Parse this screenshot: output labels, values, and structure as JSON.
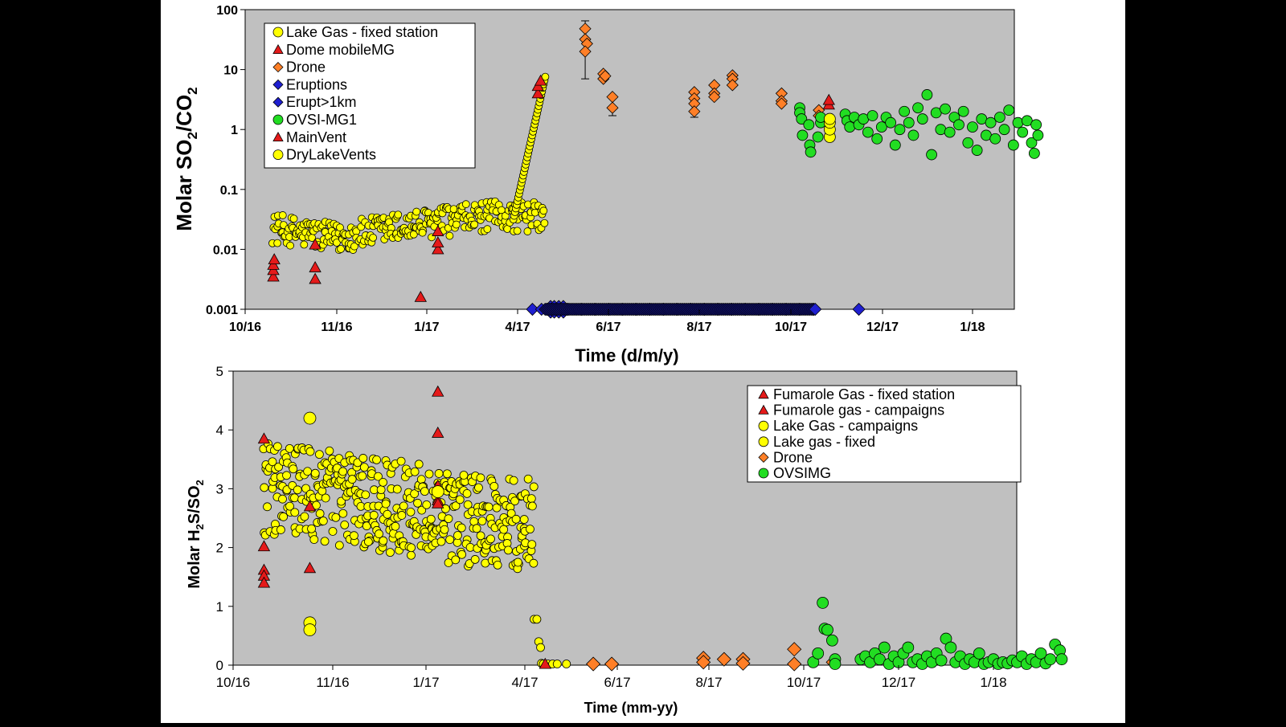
{
  "chart_data": [
    {
      "type": "scatter",
      "xlabel": "Time (d/m/y)",
      "ylabel_parts": [
        "Molar SO",
        "2",
        "/CO",
        "2"
      ],
      "yscale": "log",
      "ylim": [
        0.001,
        100
      ],
      "y_ticks": [
        "0.001",
        "0.01",
        "0.1",
        "1",
        "10",
        "100"
      ],
      "x_ticks": [
        "10/16",
        "11/16",
        "1/17",
        "4/17",
        "6/17",
        "8/17",
        "10/17",
        "12/17",
        "1/18"
      ],
      "legend_position": "top-left",
      "legend": [
        {
          "label": "Lake Gas - fixed station",
          "marker": "circle",
          "color": "#ffff00"
        },
        {
          "label": "Dome mobileMG",
          "marker": "triangle",
          "color": "#e41a1a"
        },
        {
          "label": "Drone",
          "marker": "diamond",
          "color": "#ff7f27"
        },
        {
          "label": "Eruptions",
          "marker": "diamond",
          "color": "#1f1fd0"
        },
        {
          "label": "Erupt>1km",
          "marker": "diamond",
          "color": "#1f1fd0"
        },
        {
          "label": "OVSI-MG1",
          "marker": "circle",
          "color": "#22dd22"
        },
        {
          "label": "MainVent",
          "marker": "triangle",
          "color": "#e41a1a"
        },
        {
          "label": "DryLakeVents",
          "marker": "circle",
          "color": "#ffff00"
        }
      ],
      "series": [
        {
          "name": "Dome mobileMG",
          "marker": "triangle",
          "color": "#e41a1a",
          "points": [
            [
              0.31,
              0.0035
            ],
            [
              0.31,
              0.0045
            ],
            [
              0.31,
              0.0055
            ],
            [
              0.32,
              0.0068
            ],
            [
              0.77,
              0.012
            ],
            [
              0.77,
              0.005
            ],
            [
              0.77,
              0.0032
            ],
            [
              1.93,
              0.0016
            ],
            [
              2.12,
              0.01
            ],
            [
              2.12,
              0.013
            ],
            [
              2.12,
              0.02
            ]
          ]
        },
        {
          "name": "MainVent",
          "marker": "triangle",
          "color": "#e41a1a",
          "points": [
            [
              3.22,
              4.0
            ],
            [
              3.22,
              5.3
            ],
            [
              3.25,
              6.5
            ],
            [
              6.42,
              2.6
            ],
            [
              6.42,
              3.1
            ]
          ]
        },
        {
          "name": "Drone",
          "marker": "diamond",
          "color": "#ff7f27",
          "points": [
            [
              3.74,
              48
            ],
            [
              3.74,
              32
            ],
            [
              3.76,
              27
            ],
            [
              3.74,
              20
            ],
            [
              3.94,
              8.5
            ],
            [
              3.94,
              7.0
            ],
            [
              3.96,
              7.8
            ],
            [
              4.04,
              3.5
            ],
            [
              4.04,
              2.3
            ],
            [
              4.94,
              4.2
            ],
            [
              4.94,
              3.3
            ],
            [
              4.94,
              2.7
            ],
            [
              4.94,
              2.0
            ],
            [
              5.16,
              5.5
            ],
            [
              5.16,
              4.0
            ],
            [
              5.16,
              3.5
            ],
            [
              5.36,
              8.0
            ],
            [
              5.36,
              7.0
            ],
            [
              5.36,
              5.5
            ],
            [
              5.9,
              4.0
            ],
            [
              5.9,
              3.0
            ],
            [
              5.9,
              2.7
            ],
            [
              6.31,
              2.1
            ],
            [
              6.31,
              1.7
            ]
          ]
        },
        {
          "name": "Eruptions",
          "marker": "diamond",
          "color": "#1f1fd0",
          "points": [
            [
              3.16,
              0.001
            ],
            [
              3.26,
              0.001
            ],
            [
              3.32,
              0.001
            ],
            [
              3.42,
              0.001
            ],
            [
              3.55,
              0.001
            ],
            [
              3.7,
              0.001
            ],
            [
              3.85,
              0.001
            ],
            [
              4.0,
              0.001
            ],
            [
              4.15,
              0.001
            ],
            [
              4.3,
              0.001
            ],
            [
              4.45,
              0.001
            ],
            [
              4.6,
              0.001
            ],
            [
              4.75,
              0.001
            ],
            [
              4.9,
              0.001
            ],
            [
              5.05,
              0.001
            ],
            [
              5.2,
              0.001
            ],
            [
              5.35,
              0.001
            ],
            [
              5.5,
              0.001
            ],
            [
              5.65,
              0.001
            ],
            [
              5.8,
              0.001
            ],
            [
              5.95,
              0.001
            ],
            [
              6.1,
              0.001
            ],
            [
              6.25,
              0.001
            ],
            [
              6.75,
              0.001
            ]
          ]
        },
        {
          "name": "Erupt>1km",
          "marker": "diamond",
          "color": "#1f1fd0",
          "points": [
            [
              3.36,
              0.001
            ],
            [
              3.4,
              0.001
            ],
            [
              3.45,
              0.001
            ],
            [
              3.5,
              0.001
            ]
          ]
        },
        {
          "name": "OVSI-MG1",
          "marker": "circle",
          "color": "#22dd22",
          "points": [
            [
              6.1,
              2.3
            ],
            [
              6.1,
              1.9
            ],
            [
              6.12,
              1.5
            ],
            [
              6.13,
              0.8
            ],
            [
              6.2,
              1.2
            ],
            [
              6.21,
              0.55
            ],
            [
              6.22,
              0.42
            ],
            [
              6.3,
              0.75
            ],
            [
              6.33,
              1.3
            ],
            [
              6.33,
              1.6
            ],
            [
              6.6,
              1.8
            ],
            [
              6.62,
              1.4
            ],
            [
              6.65,
              1.1
            ],
            [
              6.7,
              1.6
            ],
            [
              6.75,
              1.2
            ],
            [
              6.8,
              1.5
            ],
            [
              6.85,
              0.9
            ],
            [
              6.9,
              1.7
            ],
            [
              6.95,
              0.7
            ],
            [
              7.0,
              1.1
            ],
            [
              7.05,
              1.6
            ],
            [
              7.1,
              1.3
            ],
            [
              7.15,
              0.55
            ],
            [
              7.2,
              1.0
            ],
            [
              7.25,
              2.0
            ],
            [
              7.3,
              1.3
            ],
            [
              7.35,
              0.8
            ],
            [
              7.4,
              2.3
            ],
            [
              7.45,
              1.5
            ],
            [
              7.5,
              3.8
            ],
            [
              7.55,
              0.38
            ],
            [
              7.6,
              1.9
            ],
            [
              7.65,
              1.0
            ],
            [
              7.7,
              2.2
            ],
            [
              7.75,
              0.9
            ],
            [
              7.8,
              1.6
            ],
            [
              7.85,
              1.2
            ],
            [
              7.9,
              2.0
            ],
            [
              7.95,
              0.6
            ],
            [
              8.0,
              1.1
            ],
            [
              8.05,
              0.45
            ],
            [
              8.1,
              1.5
            ],
            [
              8.15,
              0.8
            ],
            [
              8.2,
              1.3
            ],
            [
              8.25,
              0.7
            ],
            [
              8.3,
              1.6
            ],
            [
              8.35,
              1.0
            ],
            [
              8.4,
              2.1
            ],
            [
              8.45,
              0.55
            ],
            [
              8.5,
              1.3
            ],
            [
              8.55,
              0.9
            ],
            [
              8.6,
              1.4
            ],
            [
              8.65,
              0.6
            ],
            [
              8.68,
              0.4
            ],
            [
              8.7,
              1.2
            ],
            [
              8.72,
              0.8
            ]
          ]
        }
      ],
      "lake_gas_generator": {
        "x_start": 0.3,
        "x_end": 3.3,
        "step": 0.02
      },
      "drylake_vents": [
        [
          6.43,
          0.75
        ],
        [
          6.43,
          1.0
        ],
        [
          6.43,
          1.3
        ],
        [
          6.43,
          1.5
        ]
      ],
      "error_bars": [
        [
          3.74,
          48,
          65,
          7.0
        ],
        [
          4.04,
          2.3,
          3.4,
          1.7
        ],
        [
          4.94,
          2.0,
          2.9,
          1.6
        ]
      ]
    },
    {
      "type": "scatter",
      "xlabel": "Time (mm-yy)",
      "ylabel_parts": [
        "Molar H",
        "2",
        "S/SO",
        "2"
      ],
      "ylim": [
        0,
        5
      ],
      "y_ticks": [
        "0",
        "1",
        "2",
        "3",
        "4",
        "5"
      ],
      "x_ticks": [
        "10/16",
        "11/16",
        "1/17",
        "4/17",
        "6/17",
        "8/17",
        "10/17",
        "12/17",
        "1/18"
      ],
      "legend_position": "top-right",
      "legend": [
        {
          "label": "Fumarole Gas - fixed station",
          "marker": "triangle",
          "color": "#e41a1a"
        },
        {
          "label": "Fumarole gas - campaigns",
          "marker": "triangle",
          "color": "#e41a1a"
        },
        {
          "label": "Lake Gas - campaigns",
          "marker": "circle",
          "color": "#ffff00"
        },
        {
          "label": "Lake gas - fixed",
          "marker": "circle",
          "color": "#ffff00"
        },
        {
          "label": "Drone",
          "marker": "diamond",
          "color": "#ff7f27"
        },
        {
          "label": "OVSIMG",
          "marker": "circle",
          "color": "#22dd22"
        }
      ],
      "series": [
        {
          "name": "Fumarole gas - campaigns",
          "marker": "triangle",
          "color": "#e41a1a",
          "points": [
            [
              0.31,
              3.85
            ],
            [
              0.31,
              2.02
            ],
            [
              0.31,
              1.62
            ],
            [
              0.31,
              1.52
            ],
            [
              0.31,
              1.4
            ],
            [
              0.77,
              1.65
            ],
            [
              0.77,
              2.7
            ],
            [
              2.12,
              4.65
            ],
            [
              2.12,
              3.95
            ],
            [
              2.12,
              3.05
            ],
            [
              2.12,
              2.8
            ],
            [
              2.12,
              2.75
            ],
            [
              3.22,
              0.02
            ]
          ]
        },
        {
          "name": "Lake Gas - campaigns",
          "marker": "circle",
          "color": "#ffff00",
          "big": true,
          "points": [
            [
              0.77,
              4.2
            ],
            [
              0.77,
              0.72
            ],
            [
              0.77,
              0.6
            ],
            [
              2.12,
              2.95
            ]
          ]
        },
        {
          "name": "Drone",
          "marker": "diamond",
          "color": "#ff7f27",
          "points": [
            [
              3.74,
              0.02
            ],
            [
              3.94,
              0.02
            ],
            [
              4.94,
              0.12
            ],
            [
              4.94,
              0.05
            ],
            [
              5.16,
              0.1
            ],
            [
              5.36,
              0.1
            ],
            [
              5.36,
              0.03
            ],
            [
              5.9,
              0.27
            ],
            [
              5.9,
              0.02
            ],
            [
              6.31,
              0.05
            ]
          ]
        },
        {
          "name": "OVSIMG",
          "marker": "circle",
          "color": "#22dd22",
          "points": [
            [
              6.1,
              0.05
            ],
            [
              6.15,
              0.2
            ],
            [
              6.2,
              1.06
            ],
            [
              6.22,
              0.62
            ],
            [
              6.25,
              0.6
            ],
            [
              6.3,
              0.42
            ],
            [
              6.33,
              0.1
            ],
            [
              6.33,
              0.02
            ],
            [
              6.6,
              0.1
            ],
            [
              6.65,
              0.15
            ],
            [
              6.7,
              0.05
            ],
            [
              6.75,
              0.2
            ],
            [
              6.8,
              0.1
            ],
            [
              6.85,
              0.3
            ],
            [
              6.9,
              0.02
            ],
            [
              6.95,
              0.15
            ],
            [
              7.0,
              0.05
            ],
            [
              7.05,
              0.2
            ],
            [
              7.1,
              0.3
            ],
            [
              7.15,
              0.05
            ],
            [
              7.2,
              0.1
            ],
            [
              7.25,
              0.02
            ],
            [
              7.3,
              0.15
            ],
            [
              7.35,
              0.05
            ],
            [
              7.4,
              0.2
            ],
            [
              7.45,
              0.08
            ],
            [
              7.5,
              0.45
            ],
            [
              7.55,
              0.3
            ],
            [
              7.6,
              0.05
            ],
            [
              7.65,
              0.15
            ],
            [
              7.7,
              0.02
            ],
            [
              7.75,
              0.1
            ],
            [
              7.8,
              0.05
            ],
            [
              7.85,
              0.2
            ],
            [
              7.9,
              0.02
            ],
            [
              7.95,
              0.05
            ],
            [
              8.0,
              0.1
            ],
            [
              8.05,
              0.02
            ],
            [
              8.1,
              0.05
            ],
            [
              8.15,
              0.03
            ],
            [
              8.2,
              0.08
            ],
            [
              8.25,
              0.05
            ],
            [
              8.3,
              0.15
            ],
            [
              8.35,
              0.02
            ],
            [
              8.4,
              0.1
            ],
            [
              8.45,
              0.05
            ],
            [
              8.5,
              0.2
            ],
            [
              8.55,
              0.03
            ],
            [
              8.6,
              0.1
            ],
            [
              8.65,
              0.35
            ],
            [
              8.7,
              0.25
            ],
            [
              8.72,
              0.1
            ]
          ]
        }
      ],
      "lake_gas_generator": {
        "x_start": 0.3,
        "x_end": 3.3,
        "step": 0.02
      },
      "lake_gas_dropoff": [
        [
          3.1,
          0.78
        ],
        [
          3.13,
          0.78
        ],
        [
          3.15,
          0.4
        ],
        [
          3.17,
          0.3
        ],
        [
          3.18,
          0.03
        ],
        [
          3.2,
          0.02
        ],
        [
          3.25,
          0.02
        ],
        [
          3.3,
          0.02
        ],
        [
          3.35,
          0.02
        ],
        [
          3.45,
          0.02
        ]
      ]
    }
  ]
}
